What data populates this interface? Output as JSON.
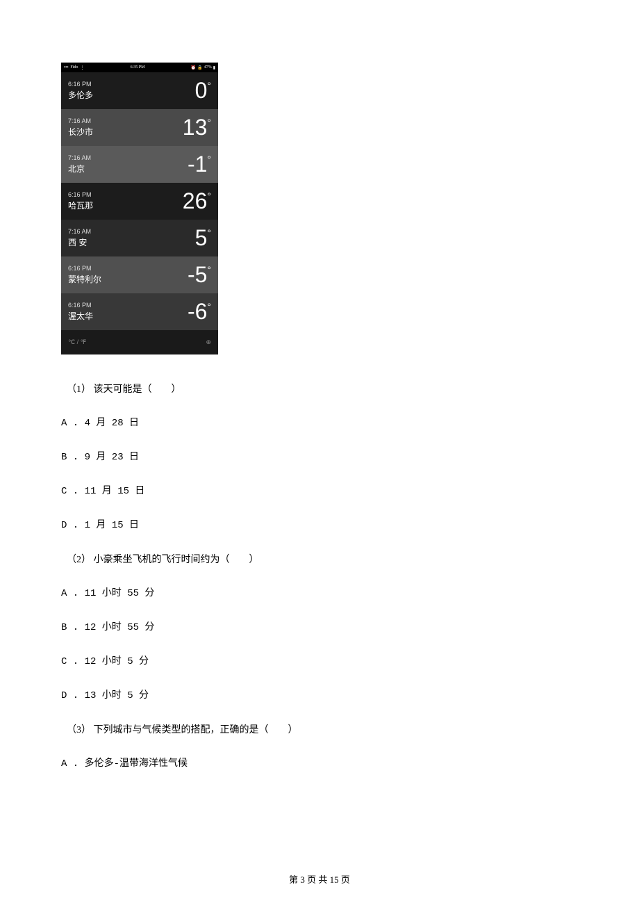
{
  "screenshot": {
    "status_bar": {
      "carrier": "Fido",
      "time": "6:35 PM",
      "battery": "47%"
    },
    "rows": [
      {
        "time": "6:16 PM",
        "city": "多伦多",
        "temp": "0",
        "bg": "#1c1c1c"
      },
      {
        "time": "7:16 AM",
        "city": "长沙市",
        "temp": "13",
        "bg": "#4a4a4a"
      },
      {
        "time": "7:16 AM",
        "city": "北京",
        "temp": "-1",
        "bg": "#5a5a5a"
      },
      {
        "time": "6:16 PM",
        "city": "哈瓦那",
        "temp": "26",
        "bg": "#1c1c1c"
      },
      {
        "time": "7:16 AM",
        "city": "西 安",
        "temp": "5",
        "bg": "#2a2a2a"
      },
      {
        "time": "6:16 PM",
        "city": "蒙特利尔",
        "temp": "-5",
        "bg": "#505050"
      },
      {
        "time": "6:16 PM",
        "city": "渥太华",
        "temp": "-6",
        "bg": "#383838"
      }
    ],
    "bottom": {
      "left": "℃ / ℉",
      "right": "⊕"
    }
  },
  "questions": {
    "q1": {
      "label": "（1） 该天可能是（　　）",
      "options": {
        "a": "A . 4 月 28 日",
        "b": "B . 9 月 23 日",
        "c": "C . 11 月 15 日",
        "d": "D . 1 月 15 日"
      }
    },
    "q2": {
      "label": "（2） 小豪乘坐飞机的飞行时间约为（　　）",
      "options": {
        "a": "A . 11 小时 55 分",
        "b": "B . 12 小时 55 分",
        "c": "C . 12 小时 5 分",
        "d": "D . 13 小时 5 分"
      }
    },
    "q3": {
      "label": "（3） 下列城市与气候类型的搭配，正确的是（　　）",
      "options": {
        "a": "A . 多伦多-温带海洋性气候"
      }
    }
  },
  "footer": "第 3 页 共 15 页"
}
